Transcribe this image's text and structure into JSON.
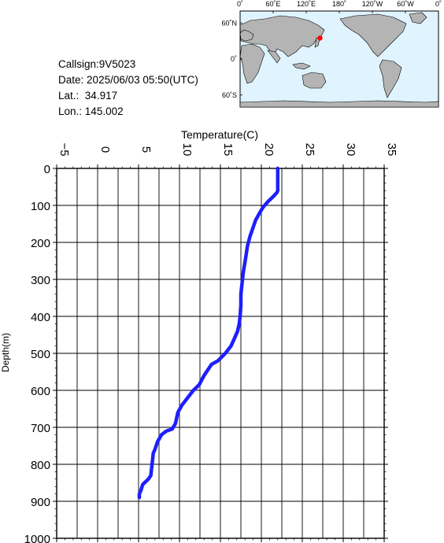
{
  "station": {
    "callsign_line": "Callsign:9V5023",
    "date_label": "Date:",
    "date_value": "2025/06/03 05:50(UTC)",
    "lat_label": "Lat.:",
    "lat_value": "34.917",
    "lon_label": "Lon.:",
    "lon_value": "145.002",
    "marker_color": "#ff0000"
  },
  "map": {
    "lon_ticks": [
      "0˚",
      "60˚E",
      "120˚E",
      "180˚",
      "120˚W",
      "60˚W",
      "0˚"
    ],
    "lat_ticks": [
      "60˚N",
      "0˚",
      "60˚S"
    ],
    "station_lon": 145.002,
    "station_lat": 34.917,
    "ocean_color": "#dff4ff",
    "land_color": "#b4b4b4"
  },
  "chart_data": {
    "type": "line",
    "xlabel": "Temperature(C)",
    "ylabel": "Depth(m)",
    "xlim": [
      -5,
      35
    ],
    "ylim": [
      0,
      1000
    ],
    "x_ticks": [
      -5,
      0,
      5,
      10,
      15,
      20,
      25,
      30,
      35
    ],
    "x_tick_labels": [
      "−5",
      "0",
      "5",
      "10",
      "15",
      "20",
      "25",
      "30",
      "35"
    ],
    "y_ticks": [
      0,
      100,
      200,
      300,
      400,
      500,
      600,
      700,
      800,
      900,
      1000
    ],
    "y_tick_labels": [
      "0",
      "100",
      "200",
      "300",
      "400",
      "500",
      "600",
      "700",
      "800",
      "900",
      "1000"
    ],
    "y_inverted": true,
    "grid": true,
    "line_color": "#1e1eff",
    "series": [
      {
        "x": [
          22.0,
          22.0,
          21.9,
          21.5,
          20.8,
          20.2,
          19.8,
          19.3,
          18.9,
          18.6,
          18.3,
          18.1,
          17.8,
          17.6,
          17.5,
          17.5,
          17.4,
          17.3,
          17.1,
          16.7,
          16.3,
          15.6,
          14.7,
          13.9,
          13.0,
          12.4,
          11.7,
          11.0,
          10.3,
          9.8,
          9.5,
          9.1,
          8.4,
          7.8,
          7.3,
          7.0,
          6.8,
          6.7,
          6.6,
          6.5,
          6.2,
          5.5,
          5.3,
          5.1,
          5.1
        ],
        "y": [
          0,
          60,
          65,
          75,
          90,
          105,
          120,
          140,
          165,
          185,
          210,
          240,
          280,
          320,
          340,
          370,
          400,
          420,
          440,
          460,
          480,
          500,
          520,
          530,
          560,
          585,
          600,
          620,
          640,
          660,
          690,
          705,
          710,
          720,
          740,
          760,
          770,
          790,
          810,
          830,
          840,
          855,
          870,
          880,
          890
        ]
      }
    ]
  }
}
